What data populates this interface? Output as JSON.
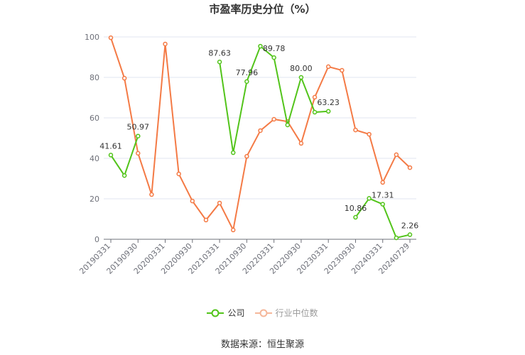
{
  "title": "市盈率历史分位（%）",
  "source": "数据来源：恒生聚源",
  "legend": [
    {
      "name": "公司",
      "color": "#52c41a"
    },
    {
      "name": "行业中位数",
      "color": "#f5a27a"
    }
  ],
  "chart_data": {
    "type": "line",
    "title": "市盈率历史分位（%）",
    "xlabel": "",
    "ylabel": "",
    "ylim": [
      0,
      100
    ],
    "yticks": [
      0,
      20,
      40,
      60,
      80,
      100
    ],
    "grid": true,
    "legend_position": "bottom",
    "x": [
      "20190331",
      "20190630",
      "20190930",
      "20191231",
      "20200331",
      "20200630",
      "20200930",
      "20201231",
      "20210331",
      "20210630",
      "20210930",
      "20211231",
      "20220331",
      "20220630",
      "20220930",
      "20221231",
      "20230331",
      "20230630",
      "20230930",
      "20231231",
      "20240331",
      "20240630",
      "20240729"
    ],
    "xtick_labels": [
      "20190331",
      "20190930",
      "20200331",
      "20200930",
      "20210331",
      "20210930",
      "20220331",
      "20220930",
      "20230331",
      "20230930",
      "20240331",
      "20240729"
    ],
    "series": [
      {
        "name": "公司",
        "color": "#52c41a",
        "values": [
          41.61,
          31.5,
          50.97,
          null,
          null,
          null,
          null,
          null,
          87.63,
          42.8,
          77.96,
          95.4,
          89.78,
          56.5,
          80.0,
          62.8,
          63.23,
          null,
          10.86,
          20.2,
          17.31,
          0.7,
          2.26
        ],
        "labels": {
          "0": "41.61",
          "2": "50.97",
          "8": "87.63",
          "10": "77.96",
          "12": "89.78",
          "14": "80.00",
          "16": "63.23",
          "18": "10.86",
          "20": "17.31",
          "22": "2.26"
        }
      },
      {
        "name": "行业中位数",
        "color": "#f47a45",
        "values": [
          99.6,
          79.6,
          42.5,
          22.1,
          96.5,
          32.3,
          18.9,
          9.5,
          17.9,
          4.6,
          41.0,
          53.7,
          59.3,
          58.2,
          47.4,
          70.2,
          85.3,
          83.5,
          54.0,
          51.9,
          28.1,
          41.8,
          35.4
        ]
      }
    ]
  }
}
